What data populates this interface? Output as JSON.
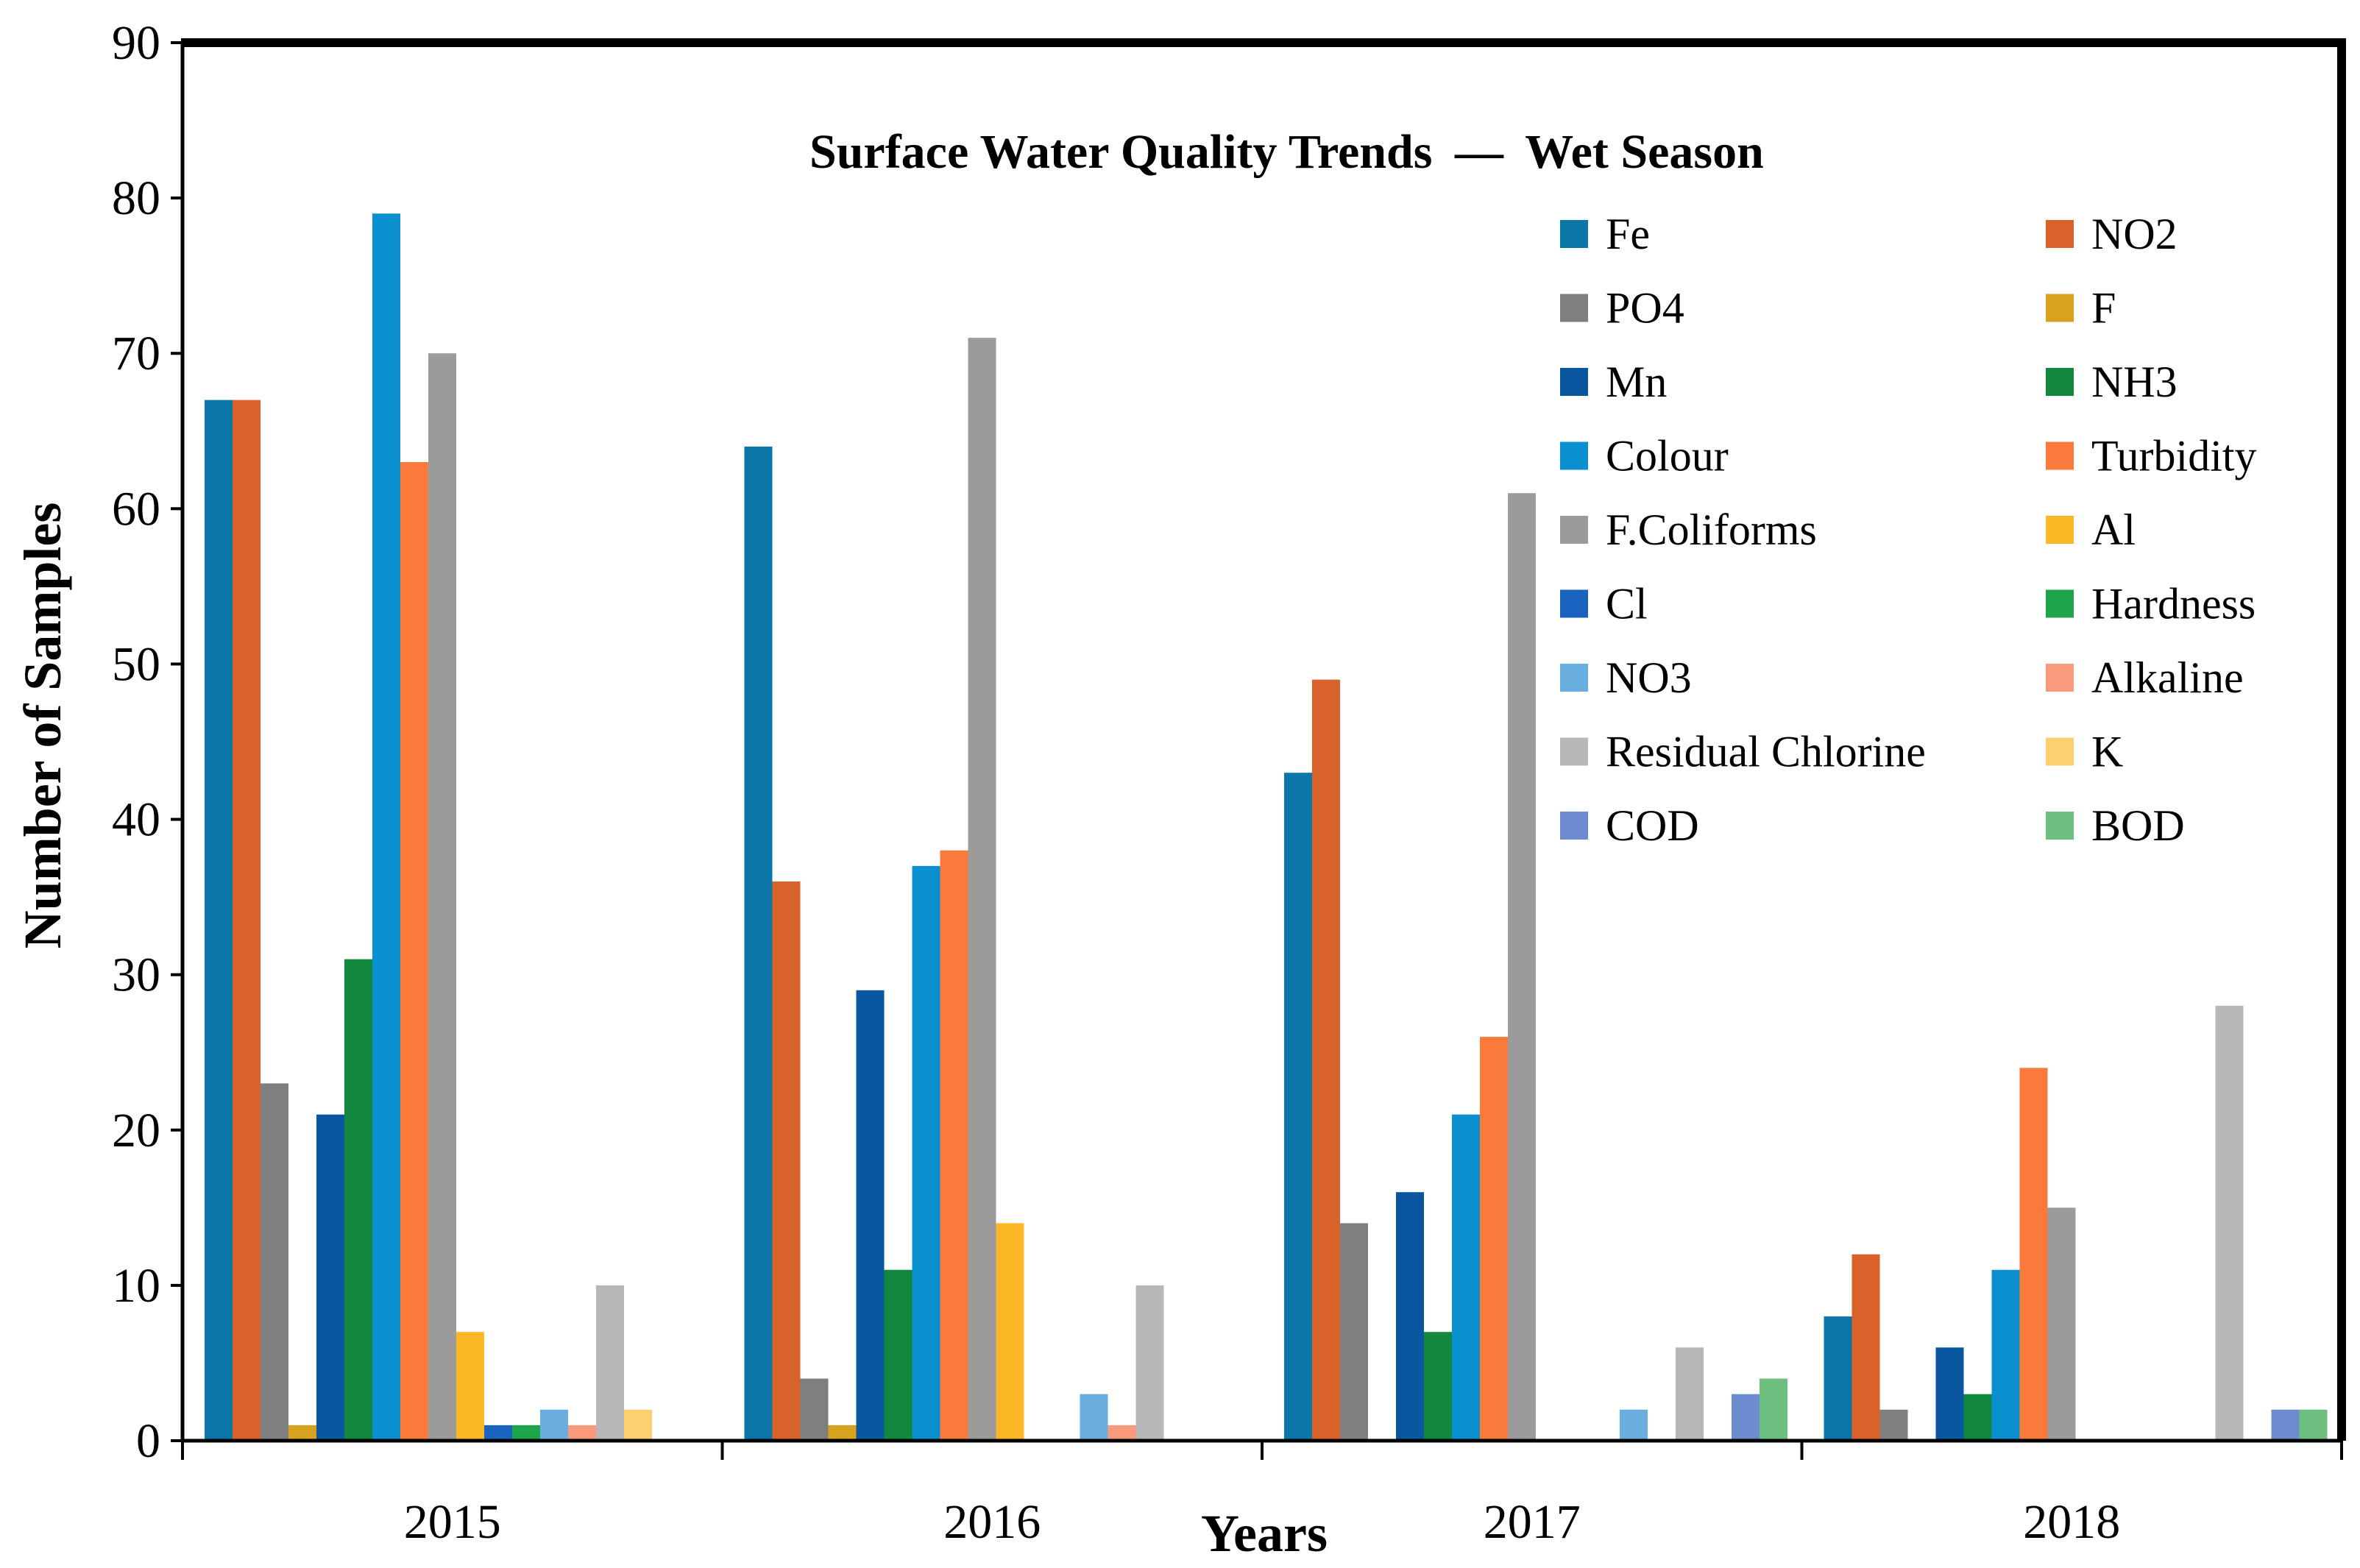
{
  "chart_data": {
    "type": "bar",
    "title": "Surface Water Quality Trends",
    "title_separator": "—",
    "subtitle": "Wet Season",
    "xlabel": "Years",
    "ylabel": "Number of Samples",
    "ylim": [
      0,
      90
    ],
    "yticks": [
      0,
      10,
      20,
      30,
      40,
      50,
      60,
      70,
      80,
      90
    ],
    "grid": false,
    "legend_position": "top-right, inside plot, two columns",
    "categories": [
      "2015",
      "2016",
      "2017",
      "2018"
    ],
    "series": [
      {
        "name": "Fe",
        "color": "#0b77a8",
        "values": [
          67,
          64,
          43,
          8
        ]
      },
      {
        "name": "NO2",
        "color": "#d9622b",
        "values": [
          67,
          36,
          49,
          12
        ]
      },
      {
        "name": "PO4",
        "color": "#7f7f7f",
        "values": [
          23,
          4,
          14,
          2
        ]
      },
      {
        "name": "F",
        "color": "#d8a11e",
        "values": [
          1,
          1,
          0,
          0
        ]
      },
      {
        "name": "Mn",
        "color": "#0a57a0",
        "values": [
          21,
          29,
          16,
          6
        ]
      },
      {
        "name": "NH3",
        "color": "#11883d",
        "values": [
          31,
          11,
          7,
          3
        ]
      },
      {
        "name": "Colour",
        "color": "#0b90cf",
        "values": [
          79,
          37,
          21,
          11
        ]
      },
      {
        "name": "Turbidity",
        "color": "#f97a3a",
        "values": [
          63,
          38,
          26,
          24
        ]
      },
      {
        "name": "F.Coliforms",
        "color": "#9b9b9b",
        "values": [
          70,
          71,
          61,
          15
        ]
      },
      {
        "name": "Al",
        "color": "#fbb726",
        "values": [
          7,
          14,
          0,
          0
        ]
      },
      {
        "name": "Cl",
        "color": "#1a64c0",
        "values": [
          1,
          0,
          0,
          0
        ]
      },
      {
        "name": "Hardness",
        "color": "#1ea54a",
        "values": [
          1,
          0,
          0,
          0
        ]
      },
      {
        "name": "NO3",
        "color": "#6aaee0",
        "values": [
          2,
          3,
          2,
          0
        ]
      },
      {
        "name": "Alkaline",
        "color": "#f99a7d",
        "values": [
          1,
          1,
          0,
          0
        ]
      },
      {
        "name": "Residual Chlorine",
        "color": "#b7b7b7",
        "values": [
          10,
          10,
          6,
          28
        ]
      },
      {
        "name": "K",
        "color": "#fdd06f",
        "values": [
          2,
          0,
          0,
          0
        ]
      },
      {
        "name": "COD",
        "color": "#6c8ccf",
        "values": [
          0,
          0,
          3,
          2
        ]
      },
      {
        "name": "BOD",
        "color": "#6cbf7f",
        "values": [
          0,
          0,
          4,
          2
        ]
      }
    ]
  }
}
